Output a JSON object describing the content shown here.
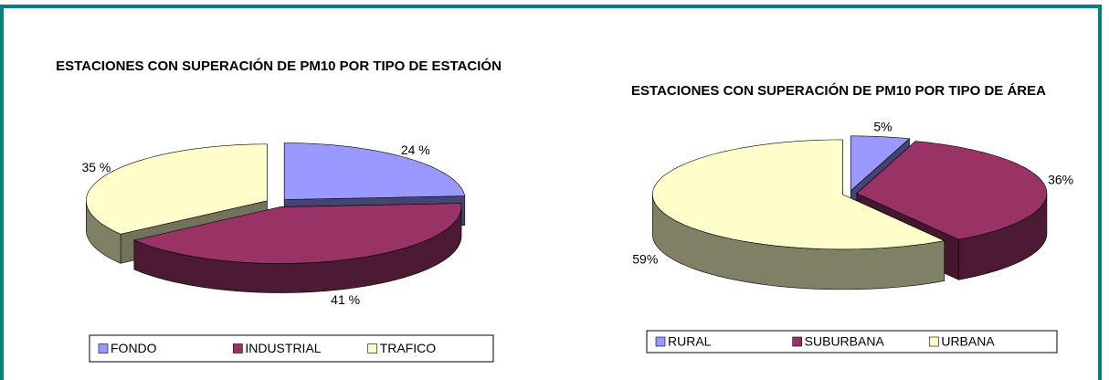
{
  "chart_data": [
    {
      "type": "pie3d",
      "title": "ESTACIONES CON SUPERACIÓN DE PM10 POR TIPO DE ESTACIÓN",
      "categories": [
        "FONDO",
        "INDUSTRIAL",
        "TRAFICO"
      ],
      "values": [
        24,
        41,
        35
      ],
      "value_labels": [
        "24 %",
        "41 %",
        "35 %"
      ],
      "colors": [
        "#9999ff",
        "#993366",
        "#ffffcc"
      ],
      "legend": "bottom"
    },
    {
      "type": "pie3d",
      "title": "ESTACIONES CON SUPERACIÓN DE PM10 POR TIPO DE ÁREA",
      "categories": [
        "RURAL",
        "SUBURBANA",
        "URBANA"
      ],
      "values": [
        5,
        36,
        59
      ],
      "value_labels": [
        "5%",
        "36%",
        "59%"
      ],
      "colors": [
        "#9999ff",
        "#993366",
        "#ffffcc"
      ],
      "legend": "bottom"
    }
  ]
}
